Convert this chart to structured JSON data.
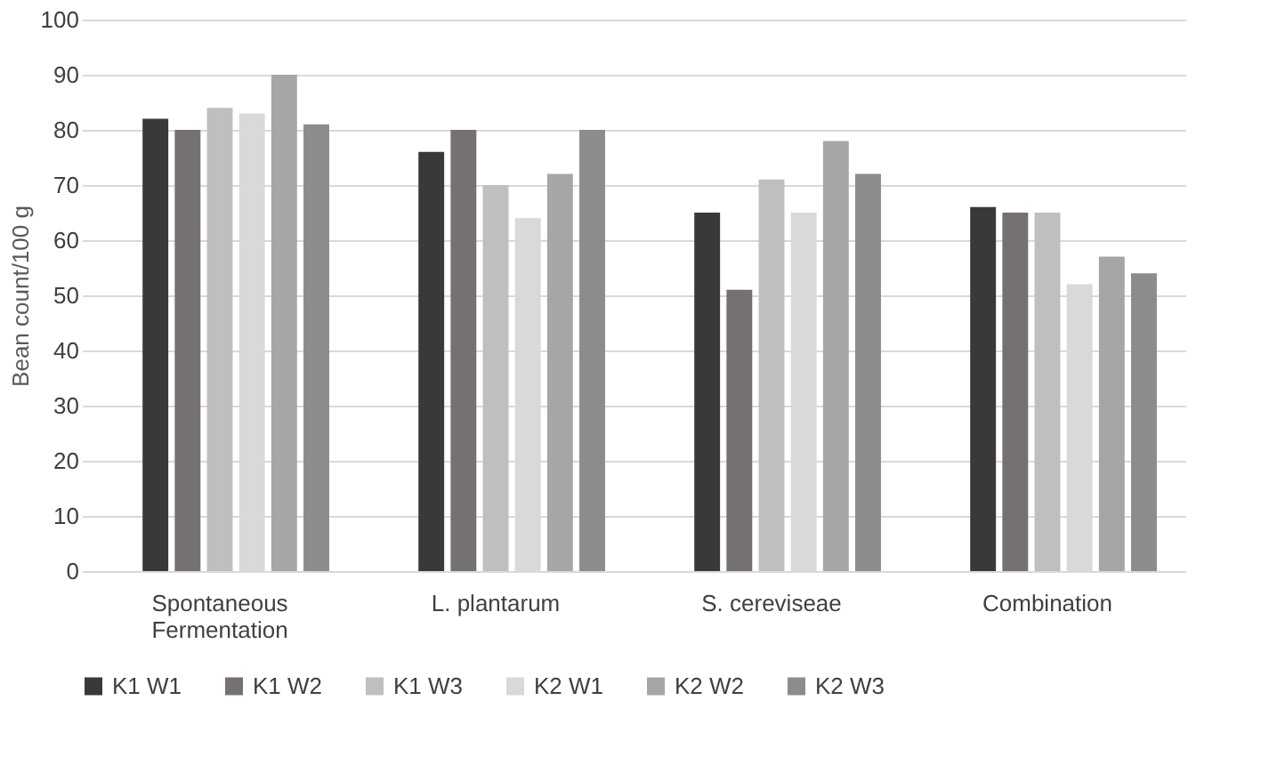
{
  "chart_data": {
    "type": "bar",
    "ylabel": "Bean count/100 g",
    "categories": [
      "Spontaneous Fermentation",
      "L. plantarum",
      "S. cereviseae",
      "Combination"
    ],
    "series": [
      {
        "name": "K1 W1",
        "color": "#3b3838",
        "values": [
          82,
          76,
          65,
          66
        ]
      },
      {
        "name": "K1 W2",
        "color": "#767171",
        "values": [
          80,
          80,
          51,
          65
        ]
      },
      {
        "name": "K1 W3",
        "color": "#bfbfbf",
        "values": [
          84,
          70,
          71,
          65
        ]
      },
      {
        "name": "K2 W1",
        "color": "#d9d9d9",
        "values": [
          83,
          64,
          65,
          52
        ]
      },
      {
        "name": "K2 W2",
        "color": "#a6a6a6",
        "values": [
          90,
          72,
          78,
          57
        ]
      },
      {
        "name": "K2 W3",
        "color": "#8c8c8c",
        "values": [
          81,
          80,
          72,
          54
        ]
      }
    ],
    "ylim": [
      0,
      100
    ],
    "yticks": [
      0,
      10,
      20,
      30,
      40,
      50,
      60,
      70,
      80,
      90,
      100
    ],
    "grid": "y",
    "legend": "bottom"
  }
}
